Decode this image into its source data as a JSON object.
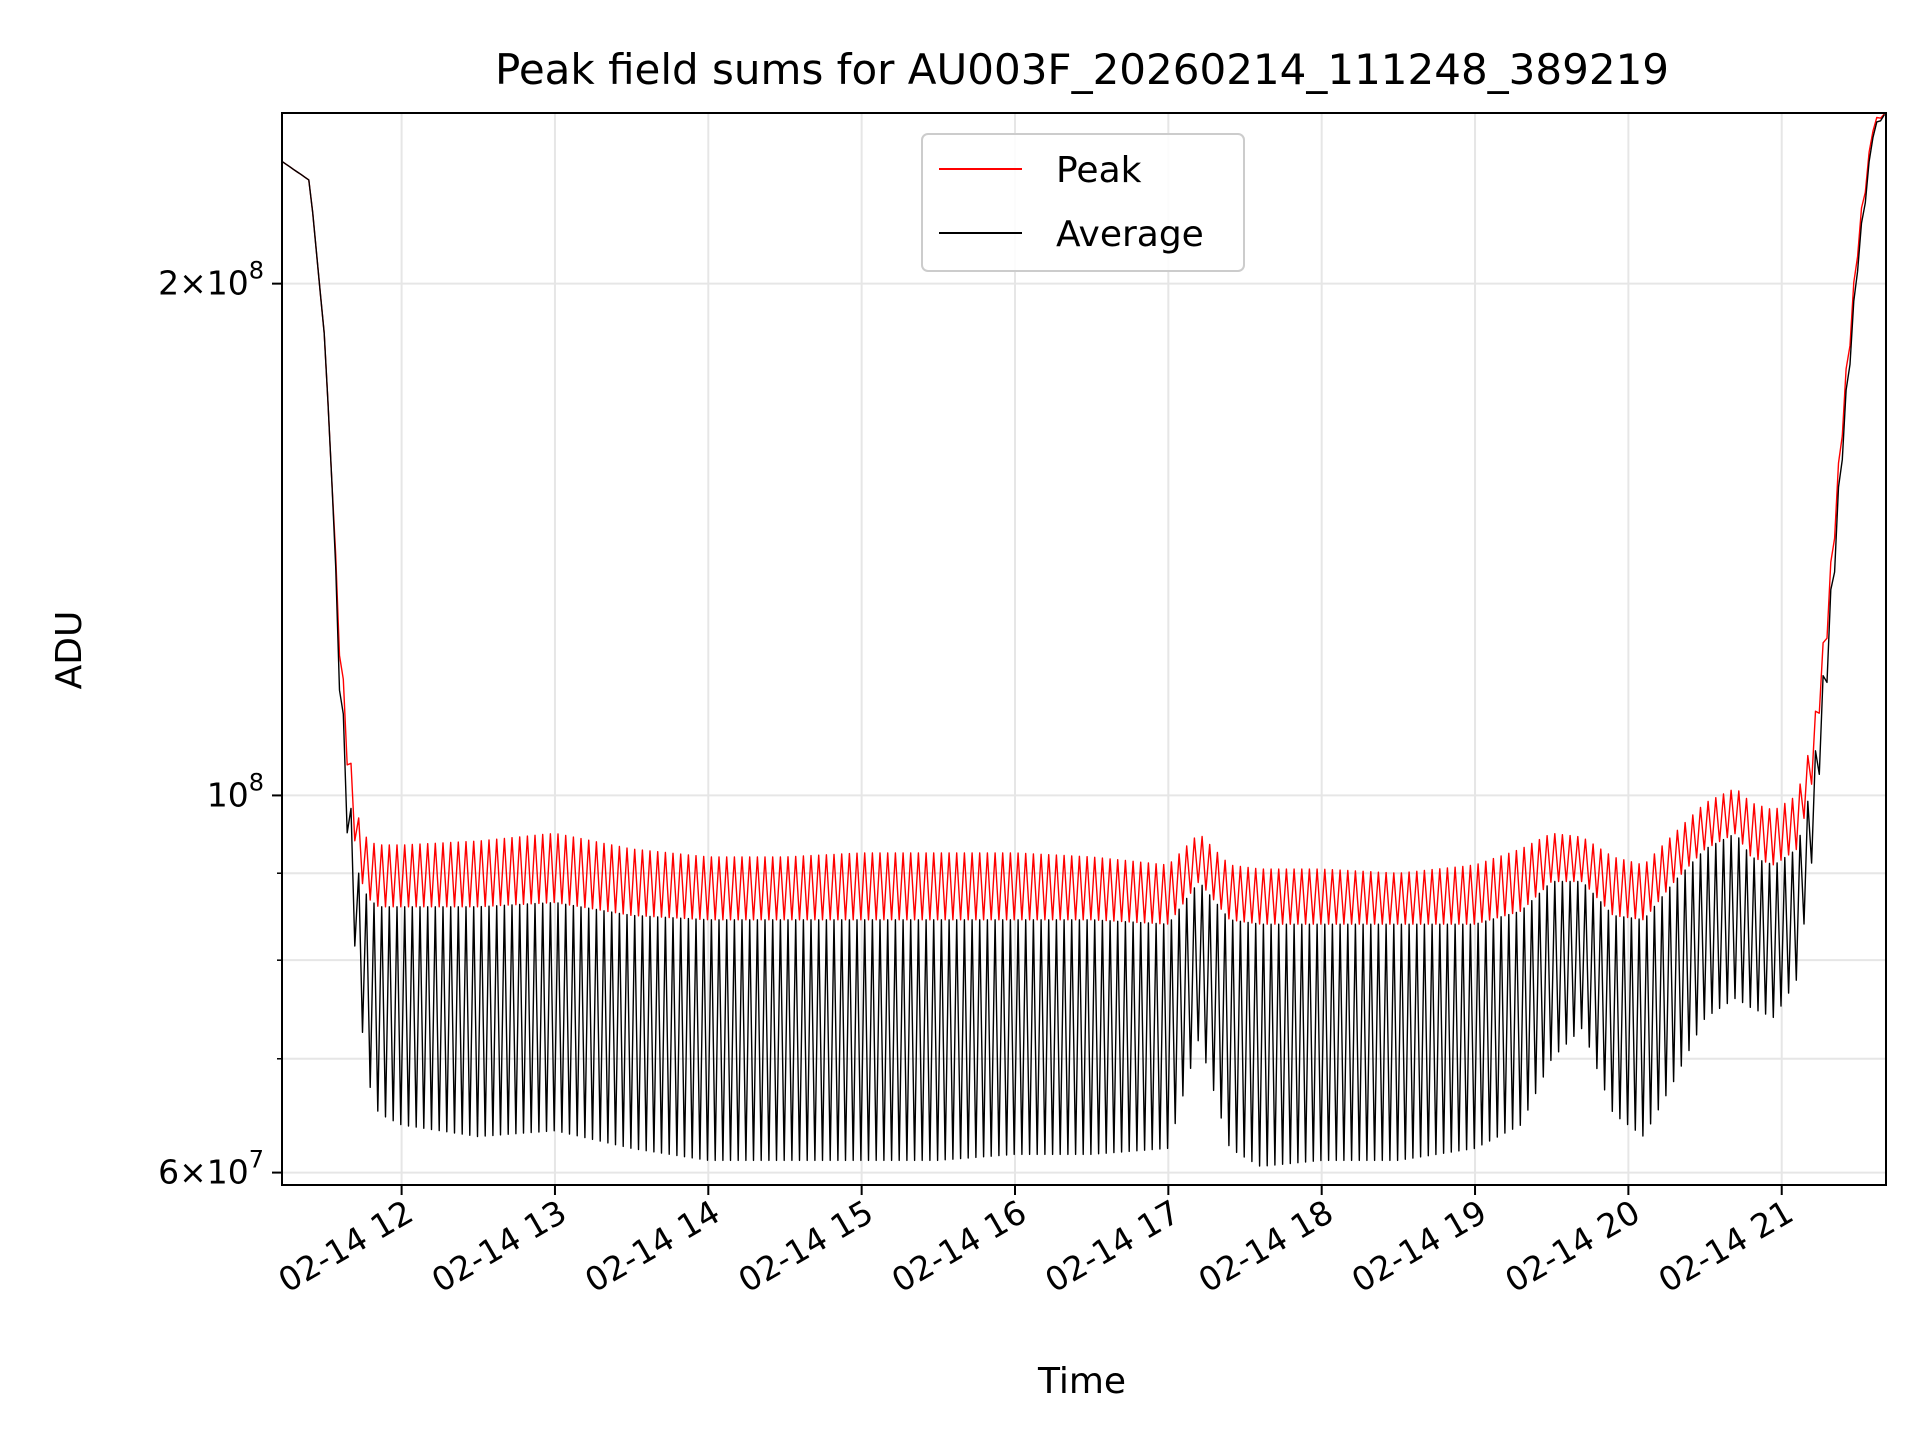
{
  "chart_data": {
    "type": "line",
    "title": "Peak field sums for AU003F_20260214_111248_389219",
    "xlabel": "Time",
    "ylabel": "ADU",
    "yscale": "log",
    "ylim": [
      59000000,
      252000000
    ],
    "xlim_hours": [
      11.22,
      21.68
    ],
    "grid": true,
    "legend_position": "upper center",
    "x_ticks": [
      {
        "label": "02-14 12",
        "hour": 12
      },
      {
        "label": "02-14 13",
        "hour": 13
      },
      {
        "label": "02-14 14",
        "hour": 14
      },
      {
        "label": "02-14 15",
        "hour": 15
      },
      {
        "label": "02-14 16",
        "hour": 16
      },
      {
        "label": "02-14 17",
        "hour": 17
      },
      {
        "label": "02-14 18",
        "hour": 18
      },
      {
        "label": "02-14 19",
        "hour": 19
      },
      {
        "label": "02-14 20",
        "hour": 20
      },
      {
        "label": "02-14 21",
        "hour": 21
      }
    ],
    "y_ticks": [
      {
        "mantissa": "2",
        "times": "×",
        "base": "10",
        "exp": "8",
        "value": 200000000
      },
      {
        "mantissa": "",
        "times": "",
        "base": "10",
        "exp": "8",
        "value": 100000000
      },
      {
        "mantissa": "6",
        "times": "×",
        "base": "10",
        "exp": "7",
        "value": 60000000
      }
    ],
    "y_minor_ticks": [
      70000000,
      80000000,
      90000000
    ],
    "series": [
      {
        "name": "Peak",
        "color": "#ff0000",
        "oscillation_period_hours": 0.05,
        "envelope": {
          "hour": [
            11.22,
            11.4,
            11.5,
            11.55,
            11.6,
            11.66,
            11.72,
            11.78,
            11.85,
            12.0,
            12.5,
            13.0,
            13.5,
            14.0,
            14.5,
            15.0,
            15.5,
            16.0,
            16.5,
            17.0,
            17.2,
            17.4,
            17.6,
            18.0,
            18.5,
            19.0,
            19.3,
            19.5,
            19.7,
            19.9,
            20.1,
            20.3,
            20.5,
            20.7,
            20.8,
            20.95,
            21.1,
            21.2,
            21.3,
            21.4,
            21.5,
            21.6,
            21.68
          ],
          "upper": [
            236000000,
            230000000,
            185000000,
            150000000,
            123000000,
            106000000,
            97000000,
            94000000,
            93500000,
            93500000,
            94000000,
            95000000,
            93000000,
            92000000,
            92000000,
            92500000,
            92500000,
            92500000,
            92000000,
            91000000,
            95000000,
            91000000,
            90500000,
            90500000,
            90000000,
            91000000,
            93000000,
            95000000,
            94500000,
            92000000,
            91000000,
            95000000,
            99000000,
            101000000,
            99000000,
            98000000,
            100000000,
            108000000,
            130000000,
            170000000,
            215000000,
            250000000,
            252000000
          ],
          "lower": [
            236000000,
            230000000,
            185000000,
            150000000,
            118000000,
            100000000,
            90000000,
            87000000,
            86000000,
            86000000,
            86000000,
            86500000,
            85000000,
            84500000,
            84500000,
            84500000,
            84500000,
            84500000,
            84500000,
            84000000,
            89000000,
            84500000,
            84000000,
            84000000,
            84000000,
            84000000,
            85500000,
            89000000,
            89000000,
            85000000,
            84500000,
            89000000,
            93000000,
            95000000,
            92000000,
            91000000,
            93000000,
            102000000,
            125000000,
            165000000,
            210000000,
            248000000,
            252000000
          ]
        }
      },
      {
        "name": "Average",
        "color": "#000000",
        "oscillation_period_hours": 0.05,
        "envelope": {
          "hour": [
            11.22,
            11.4,
            11.5,
            11.55,
            11.6,
            11.66,
            11.72,
            11.78,
            11.85,
            12.0,
            12.5,
            13.0,
            13.5,
            14.0,
            14.5,
            15.0,
            15.5,
            16.0,
            16.5,
            17.0,
            17.2,
            17.4,
            17.6,
            18.0,
            18.5,
            19.0,
            19.3,
            19.5,
            19.7,
            19.9,
            20.1,
            20.3,
            20.5,
            20.7,
            20.8,
            20.95,
            21.1,
            21.2,
            21.3,
            21.4,
            21.5,
            21.6,
            21.68
          ],
          "upper": [
            236000000,
            230000000,
            185000000,
            150000000,
            118000000,
            100000000,
            90000000,
            87000000,
            86000000,
            86000000,
            86000000,
            86500000,
            85000000,
            84500000,
            84500000,
            84500000,
            84500000,
            84500000,
            84500000,
            84000000,
            89000000,
            84500000,
            84000000,
            84000000,
            84000000,
            84000000,
            85500000,
            89000000,
            89000000,
            85000000,
            84500000,
            89000000,
            93000000,
            95000000,
            92000000,
            91000000,
            93000000,
            102000000,
            125000000,
            165000000,
            210000000,
            248000000,
            252000000
          ],
          "lower": [
            236000000,
            230000000,
            185000000,
            150000000,
            112000000,
            90000000,
            76000000,
            68000000,
            65000000,
            64000000,
            63000000,
            63500000,
            62000000,
            61000000,
            61000000,
            61000000,
            61000000,
            61500000,
            61500000,
            62000000,
            72000000,
            62000000,
            60500000,
            61000000,
            61000000,
            62000000,
            64000000,
            70000000,
            73000000,
            65000000,
            63000000,
            68000000,
            74000000,
            76000000,
            75000000,
            74000000,
            78000000,
            92000000,
            118000000,
            160000000,
            206000000,
            246000000,
            252000000
          ]
        }
      }
    ]
  }
}
